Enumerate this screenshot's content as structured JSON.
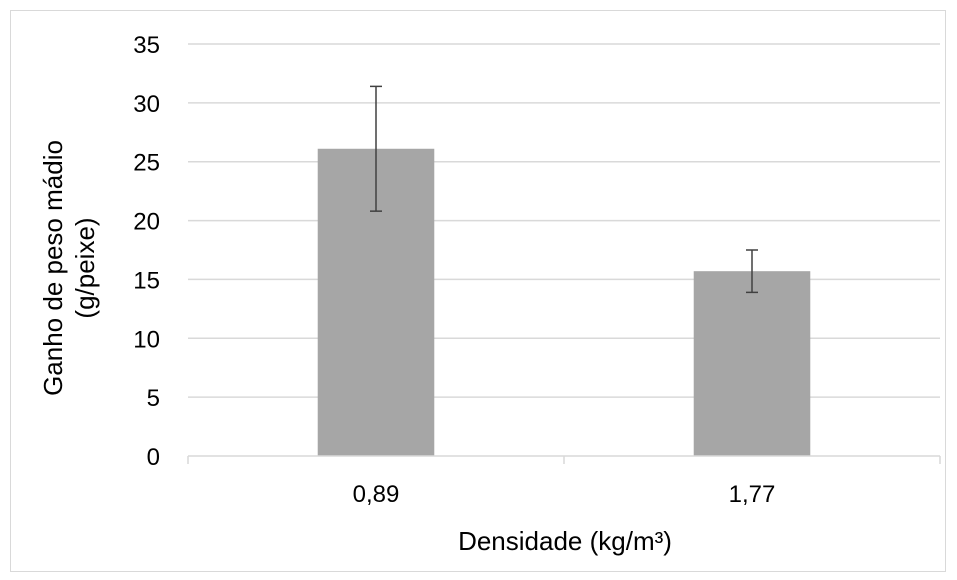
{
  "chart_data": {
    "type": "bar",
    "categories": [
      "0,89",
      "1,77"
    ],
    "values": [
      26.1,
      15.7
    ],
    "error_bars": [
      5.3,
      1.8
    ],
    "xlabel": "Densidade (kg/m³)",
    "ylabel_lines": [
      "Ganho de peso mádio",
      "(g/peixe)"
    ],
    "ylim": [
      0,
      35
    ],
    "yticks": [
      0,
      5,
      10,
      15,
      20,
      25,
      30,
      35
    ],
    "grid": true,
    "legend": "none",
    "bar_color": "#a6a6a6",
    "gridline_color": "#d9d9d9",
    "error_bar_color": "#404040"
  }
}
